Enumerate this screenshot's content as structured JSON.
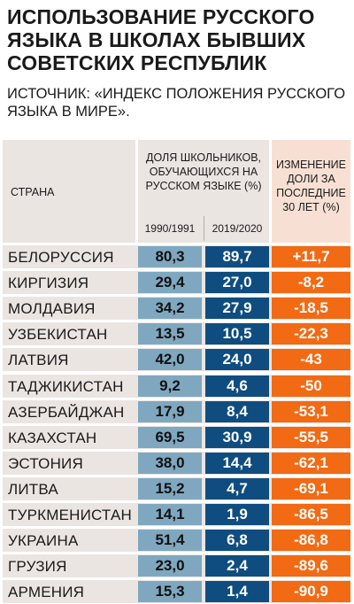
{
  "title": "Использование русского языка в школах бывших советских республик",
  "source": "Источник: «Индекс положения русского языка в мире».",
  "colors": {
    "header_bg": "#ebe5e2",
    "change_header_bg": "#f7e0d3",
    "bar_1990": "#7fa8c0",
    "bar_2019": "#0f4d80",
    "bar_change": "#f26a13"
  },
  "chart_data": {
    "type": "table",
    "headers": {
      "country": "Страна",
      "share": "Доля школьников, обучающихся на русском языке (%)",
      "year_1990": "1990/1991",
      "year_2019": "2019/2020",
      "change": "Изменение доли за последние 30 лет (%)"
    },
    "rows": [
      {
        "country": "Белоруссия",
        "v1990": "80,3",
        "v2019": "89,7",
        "change": "+11,7"
      },
      {
        "country": "Киргизия",
        "v1990": "29,4",
        "v2019": "27,0",
        "change": "-8,2"
      },
      {
        "country": "Молдавия",
        "v1990": "34,2",
        "v2019": "27,9",
        "change": "-18,5"
      },
      {
        "country": "Узбекистан",
        "v1990": "13,5",
        "v2019": "10,5",
        "change": "-22,3"
      },
      {
        "country": "Латвия",
        "v1990": "42,0",
        "v2019": "24,0",
        "change": "-43"
      },
      {
        "country": "Таджикистан",
        "v1990": "9,2",
        "v2019": "4,6",
        "change": "-50"
      },
      {
        "country": "Азербайджан",
        "v1990": "17,9",
        "v2019": "8,4",
        "change": "-53,1"
      },
      {
        "country": "Казахстан",
        "v1990": "69,5",
        "v2019": "30,9",
        "change": "-55,5"
      },
      {
        "country": "Эстония",
        "v1990": "38,0",
        "v2019": "14,4",
        "change": "-62,1"
      },
      {
        "country": "Литва",
        "v1990": "15,2",
        "v2019": "4,7",
        "change": "-69,1"
      },
      {
        "country": "Туркменистан",
        "v1990": "14,1",
        "v2019": "1,9",
        "change": "-86,5"
      },
      {
        "country": "Украина",
        "v1990": "51,4",
        "v2019": "6,8",
        "change": "-86,8"
      },
      {
        "country": "Грузия",
        "v1990": "23,0",
        "v2019": "2,4",
        "change": "-89,6"
      },
      {
        "country": "Армения",
        "v1990": "15,3",
        "v2019": "1,4",
        "change": "-90,9"
      }
    ]
  }
}
